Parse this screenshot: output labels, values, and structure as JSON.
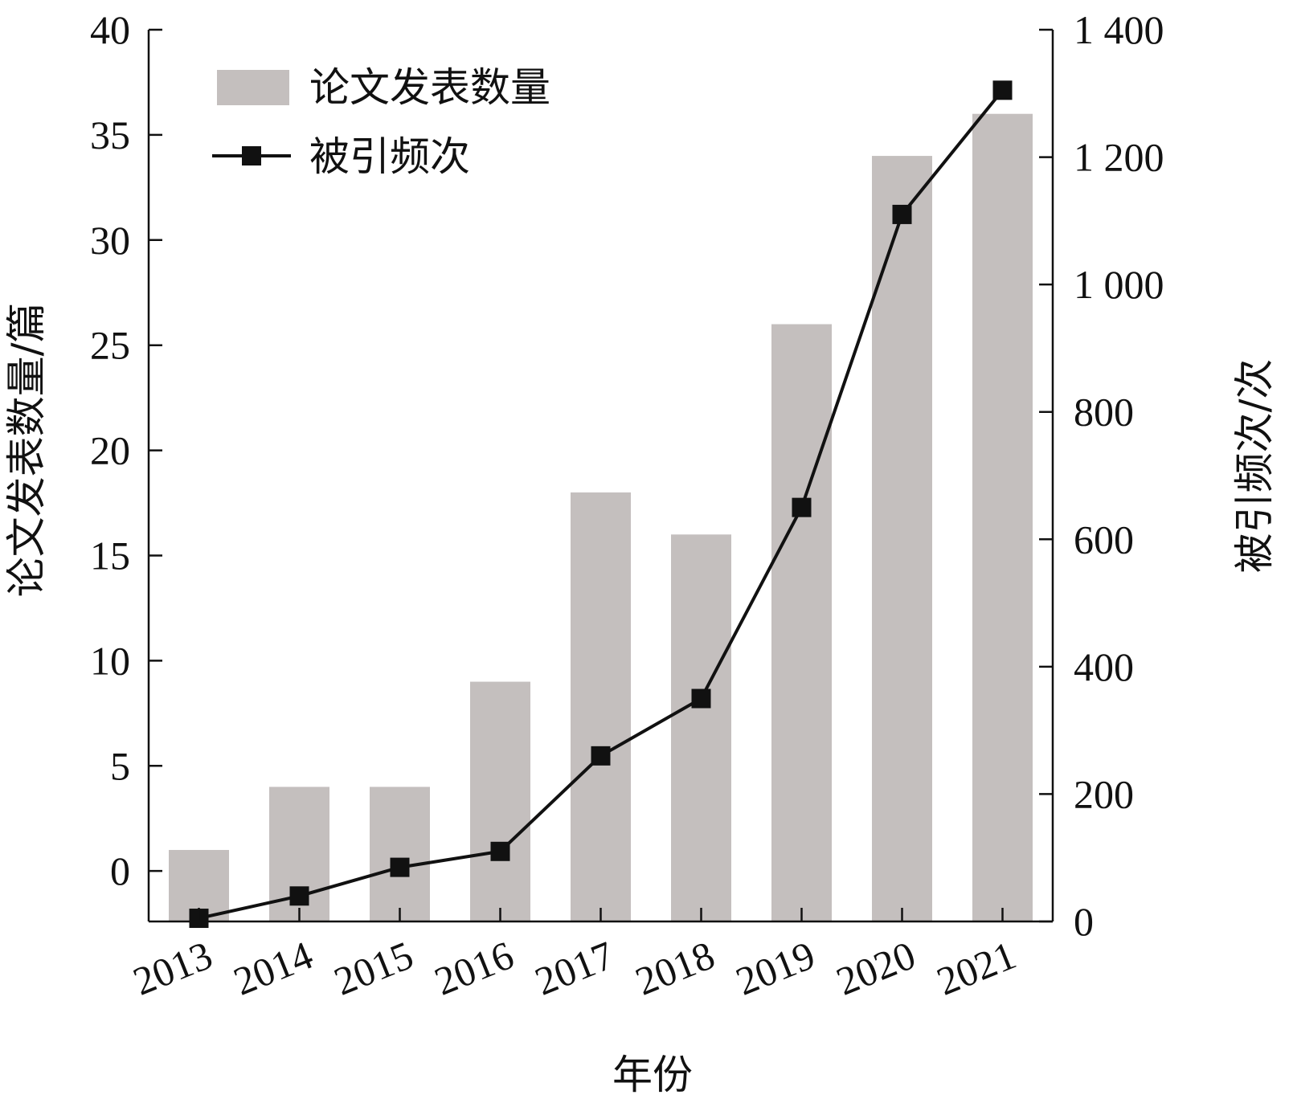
{
  "chart_data": {
    "type": "bar",
    "categories": [
      "2013",
      "2014",
      "2015",
      "2016",
      "2017",
      "2018",
      "2019",
      "2020",
      "2021"
    ],
    "series": [
      {
        "name": "论文发表数量",
        "type": "bar",
        "axis": "left",
        "values": [
          1,
          4,
          4,
          9,
          18,
          16,
          26,
          34,
          36
        ],
        "color": "#c4bfbe"
      },
      {
        "name": "被引频次",
        "type": "line",
        "axis": "right",
        "marker": "square",
        "values": [
          5,
          40,
          85,
          110,
          260,
          350,
          650,
          1110,
          1305
        ],
        "color": "#111111"
      }
    ],
    "xlabel": "年份",
    "ylabel": "论文发表数量/篇",
    "y2label": "被引频次/次",
    "ylim": [
      -2.4,
      40
    ],
    "y2lim": [
      0,
      1400
    ],
    "yticks": [
      0,
      5,
      10,
      15,
      20,
      25,
      30,
      35,
      40
    ],
    "yticks_labels": [
      "0",
      "5",
      "10",
      "15",
      "20",
      "25",
      "30",
      "35",
      "40"
    ],
    "y2ticks": [
      0,
      200,
      400,
      600,
      800,
      1000,
      1200,
      1400
    ],
    "y2ticks_labels": [
      "0",
      "200",
      "400",
      "600",
      "800",
      "1 000",
      "1 200",
      "1 400"
    ],
    "grid": false,
    "legend": "top-left"
  }
}
